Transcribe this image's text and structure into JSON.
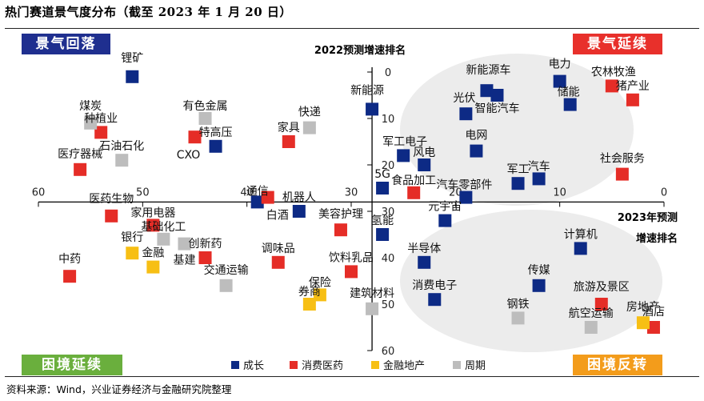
{
  "header": {
    "title": "热门赛道景气度分布（截至 2023 年 1 月 20 日）",
    "source": "资料来源：Wind，兴业证券经济与金融研究院整理"
  },
  "quadrants": [
    {
      "key": "tl",
      "label": "景气回落",
      "color": "#1f2f8f"
    },
    {
      "key": "tr",
      "label": "景气延续",
      "color": "#e8302b"
    },
    {
      "key": "bl",
      "label": "困境延续",
      "color": "#6aaf3d"
    },
    {
      "key": "br",
      "label": "困境反转",
      "color": "#f39c1b"
    }
  ],
  "chart_data": {
    "type": "scatter",
    "title": "",
    "y_axis_label": "2022预测增速排名",
    "x_axis_label": [
      "2023年预测",
      "增速排名"
    ],
    "xlim": [
      60,
      0
    ],
    "ylim": [
      60,
      0
    ],
    "x_ticks": [
      60,
      50,
      40,
      30,
      20,
      10,
      0
    ],
    "y_ticks": [
      0,
      10,
      20,
      30,
      40,
      50,
      60
    ],
    "x_reversed": true,
    "y_reversed": true,
    "axis_cross": {
      "x": 28,
      "y": 28
    },
    "colors": {
      "成长": "#0d2a85",
      "消费医药": "#e52d27",
      "金融地产": "#f7bf14",
      "周期": "#bdbdbd"
    },
    "series": [
      {
        "name": "成长",
        "points": [
          {
            "label": "锂矿",
            "x": 51,
            "y": 1
          },
          {
            "label": "新能源",
            "x": 28,
            "y": 8
          },
          {
            "label": "新能源车",
            "x": 17,
            "y": 4
          },
          {
            "label": "光伏",
            "x": 19,
            "y": 9
          },
          {
            "label": "智能汽车",
            "x": 16,
            "y": 5
          },
          {
            "label": "电力",
            "x": 10,
            "y": 2
          },
          {
            "label": "储能",
            "x": 9,
            "y": 7
          },
          {
            "label": "特高压",
            "x": 43,
            "y": 16
          },
          {
            "label": "军工电子",
            "x": 25,
            "y": 18
          },
          {
            "label": "风电",
            "x": 23,
            "y": 20
          },
          {
            "label": "电网",
            "x": 18,
            "y": 17
          },
          {
            "label": "军工",
            "x": 14,
            "y": 24
          },
          {
            "label": "汽车",
            "x": 12,
            "y": 23
          },
          {
            "label": "5G",
            "x": 27,
            "y": 25
          },
          {
            "label": "汽车零部件",
            "x": 19,
            "y": 27
          },
          {
            "label": "通信",
            "x": 39,
            "y": 28
          },
          {
            "label": "机器人",
            "x": 35,
            "y": 30
          },
          {
            "label": "元宇宙",
            "x": 21,
            "y": 32
          },
          {
            "label": "氢能",
            "x": 27,
            "y": 35
          },
          {
            "label": "计算机",
            "x": 8,
            "y": 38
          },
          {
            "label": "半导体",
            "x": 23,
            "y": 41
          },
          {
            "label": "传媒",
            "x": 12,
            "y": 46
          },
          {
            "label": "消费电子",
            "x": 22,
            "y": 49
          }
        ]
      },
      {
        "name": "消费医药",
        "points": [
          {
            "label": "农林牧渔",
            "x": 5,
            "y": 3
          },
          {
            "label": "猪产业",
            "x": 3,
            "y": 6
          },
          {
            "label": "种植业",
            "x": 54,
            "y": 13
          },
          {
            "label": "CXO",
            "x": 45,
            "y": 14
          },
          {
            "label": "家具",
            "x": 36,
            "y": 15
          },
          {
            "label": "医疗器械",
            "x": 56,
            "y": 21
          },
          {
            "label": "社会服务",
            "x": 4,
            "y": 22
          },
          {
            "label": "食品加工",
            "x": 24,
            "y": 26
          },
          {
            "label": "医药生物",
            "x": 53,
            "y": 31
          },
          {
            "label": "家用电器",
            "x": 49,
            "y": 33
          },
          {
            "label": "美容护理",
            "x": 31,
            "y": 34
          },
          {
            "label": "创新药",
            "x": 44,
            "y": 40
          },
          {
            "label": "调味品",
            "x": 37,
            "y": 41
          },
          {
            "label": "饮料乳品",
            "x": 30,
            "y": 43
          },
          {
            "label": "中药",
            "x": 57,
            "y": 44
          },
          {
            "label": "旅游及景区",
            "x": 6,
            "y": 50
          },
          {
            "label": "酒店",
            "x": 1,
            "y": 55
          },
          {
            "label": "白酒",
            "x": 38,
            "y": 27
          }
        ]
      },
      {
        "name": "金融地产",
        "points": [
          {
            "label": "银行",
            "x": 51,
            "y": 39
          },
          {
            "label": "金融",
            "x": 49,
            "y": 42
          },
          {
            "label": "保险",
            "x": 33,
            "y": 48
          },
          {
            "label": "券商",
            "x": 34,
            "y": 50
          },
          {
            "label": "房地产",
            "x": 2,
            "y": 54
          }
        ]
      },
      {
        "name": "周期",
        "points": [
          {
            "label": "煤炭",
            "x": 55,
            "y": 11
          },
          {
            "label": "有色金属",
            "x": 44,
            "y": 10
          },
          {
            "label": "快递",
            "x": 34,
            "y": 12
          },
          {
            "label": "石油石化",
            "x": 52,
            "y": 19
          },
          {
            "label": "基础化工",
            "x": 48,
            "y": 36
          },
          {
            "label": "基建",
            "x": 46,
            "y": 37
          },
          {
            "label": "交通运输",
            "x": 42,
            "y": 46
          },
          {
            "label": "建筑材料",
            "x": 28,
            "y": 51
          },
          {
            "label": "钢铁",
            "x": 14,
            "y": 53
          },
          {
            "label": "航空运输",
            "x": 7,
            "y": 55
          }
        ]
      }
    ],
    "legend": {
      "position": "bottom-center",
      "items": [
        "成长",
        "消费医药",
        "金融地产",
        "周期"
      ]
    }
  }
}
